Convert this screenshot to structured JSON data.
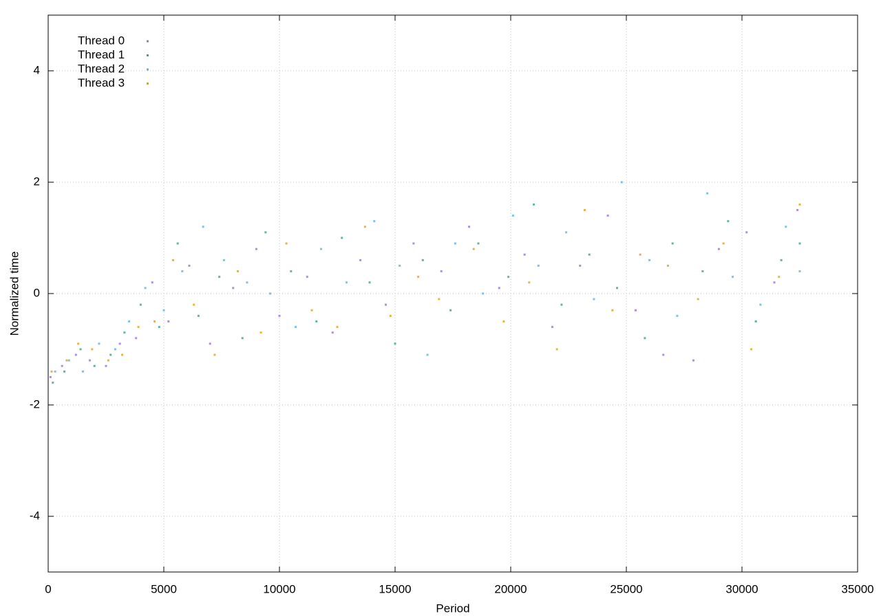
{
  "chart_data": {
    "type": "scatter",
    "x_label": "Period",
    "y_label": "Normalized time",
    "xlim": [
      0,
      35000
    ],
    "xticks": [
      0,
      5000,
      10000,
      15000,
      20000,
      25000,
      30000,
      35000
    ],
    "ylim": [
      -5,
      5
    ],
    "yticks": [
      -4,
      -2,
      0,
      2,
      4
    ],
    "grid": true,
    "legend": "upper left",
    "series": [
      {
        "name": "Thread 0",
        "color": "#9b6fe0",
        "x": [
          100,
          600,
          1200,
          1800,
          2500,
          3100,
          3800,
          4500,
          5200,
          6100,
          7000,
          8000,
          9000,
          10000,
          11200,
          12300,
          13500,
          14600,
          15800,
          17000,
          18200,
          19500,
          20600,
          21800,
          23000,
          24200,
          25400,
          26600,
          27900,
          29000,
          30200,
          31400,
          32400
        ],
        "values": [
          -1.5,
          -1.3,
          -1.1,
          -1.2,
          -1.3,
          -0.9,
          -0.8,
          0.2,
          -0.5,
          0.5,
          -0.9,
          0.1,
          0.8,
          -0.4,
          0.3,
          -0.7,
          0.6,
          -0.2,
          0.9,
          0.4,
          1.2,
          0.1,
          0.7,
          -0.6,
          0.5,
          1.4,
          -0.3,
          -1.1,
          -1.2,
          0.8,
          1.1,
          0.2,
          1.5
        ]
      },
      {
        "name": "Thread 1",
        "color": "#3aa57f",
        "x": [
          200,
          700,
          1400,
          2000,
          2700,
          3300,
          4000,
          4800,
          5600,
          6500,
          7400,
          8400,
          9400,
          10500,
          11600,
          12700,
          13900,
          15000,
          16200,
          17400,
          18600,
          19900,
          21000,
          22200,
          23400,
          24600,
          25800,
          27000,
          28300,
          29400,
          30600,
          31700,
          32500
        ],
        "values": [
          -1.6,
          -1.4,
          -1.0,
          -1.3,
          -1.1,
          -0.7,
          -0.2,
          -0.6,
          0.9,
          -0.4,
          0.3,
          -0.8,
          1.1,
          0.4,
          -0.5,
          1.0,
          0.2,
          -0.9,
          0.6,
          -0.3,
          0.9,
          0.3,
          1.6,
          -0.2,
          0.7,
          0.1,
          -0.8,
          0.9,
          0.4,
          1.3,
          -0.5,
          0.6,
          0.9
        ]
      },
      {
        "name": "Thread 2",
        "color": "#5fb3e0",
        "x": [
          300,
          900,
          1500,
          2200,
          2900,
          3500,
          4200,
          5000,
          5800,
          6700,
          7600,
          8600,
          9600,
          10700,
          11800,
          12900,
          14100,
          15200,
          16400,
          17600,
          18800,
          20100,
          21200,
          22400,
          23600,
          24800,
          26000,
          27200,
          28500,
          29600,
          30800,
          31900,
          32500
        ],
        "values": [
          -1.4,
          -1.2,
          -1.4,
          -0.9,
          -1.0,
          -0.5,
          0.1,
          -0.3,
          0.4,
          1.2,
          0.6,
          0.2,
          0.0,
          -0.6,
          0.8,
          0.2,
          1.3,
          0.5,
          -1.1,
          0.9,
          0.0,
          1.4,
          0.5,
          1.1,
          -0.1,
          2.0,
          0.6,
          -0.4,
          1.8,
          0.3,
          -0.2,
          1.2,
          0.4
        ]
      },
      {
        "name": "Thread 3",
        "color": "#e0a020",
        "x": [
          150,
          800,
          1300,
          1900,
          2600,
          3200,
          3900,
          4600,
          5400,
          6300,
          7200,
          8200,
          9200,
          10300,
          11400,
          12500,
          13700,
          14800,
          16000,
          16900,
          18400,
          19700,
          20800,
          22000,
          23200,
          24400,
          25600,
          26800,
          28100,
          29200,
          30400,
          31600,
          32500
        ],
        "values": [
          -1.4,
          -1.2,
          -0.9,
          -1.0,
          -1.2,
          -1.1,
          -0.6,
          -0.5,
          0.6,
          -0.2,
          -1.1,
          0.4,
          -0.7,
          0.9,
          -0.3,
          -0.6,
          1.2,
          -0.4,
          0.3,
          -0.1,
          0.8,
          -0.5,
          0.2,
          -1.0,
          1.5,
          -0.3,
          0.7,
          0.5,
          -0.1,
          0.9,
          -1.0,
          0.3,
          1.6
        ]
      }
    ]
  }
}
